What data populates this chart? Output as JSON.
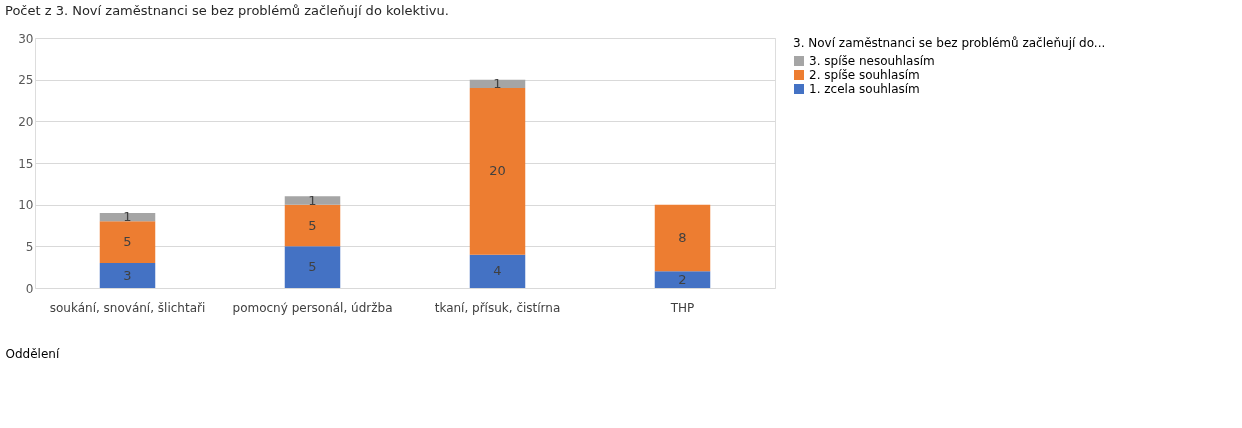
{
  "chart_data": {
    "type": "bar",
    "stacked": true,
    "title": "Počet z 3. Noví zaměstnanci se bez problémů začleňují do kolektivu.",
    "xlabel": "Oddělení",
    "legend_title": "3. Noví zaměstnanci se bez problémů začleňují do...",
    "categories": [
      "soukání, snování, šlichtaři",
      "pomocný personál, údržba",
      "tkaní, přísuk, čistírna",
      "THP"
    ],
    "series": [
      {
        "name": "1. zcela souhlasím",
        "color": "#4472c4",
        "values": [
          3,
          5,
          4,
          2
        ]
      },
      {
        "name": "2. spíše souhlasím",
        "color": "#ed7d31",
        "values": [
          5,
          5,
          20,
          8
        ]
      },
      {
        "name": "3. spíše nesouhlasím",
        "color": "#a5a5a5",
        "values": [
          1,
          1,
          1,
          null
        ]
      }
    ],
    "ylim": [
      0,
      30
    ],
    "yticks": [
      0,
      5,
      10,
      15,
      20,
      25,
      30
    ],
    "grid": "y",
    "legend": "right",
    "data_labels": true
  }
}
